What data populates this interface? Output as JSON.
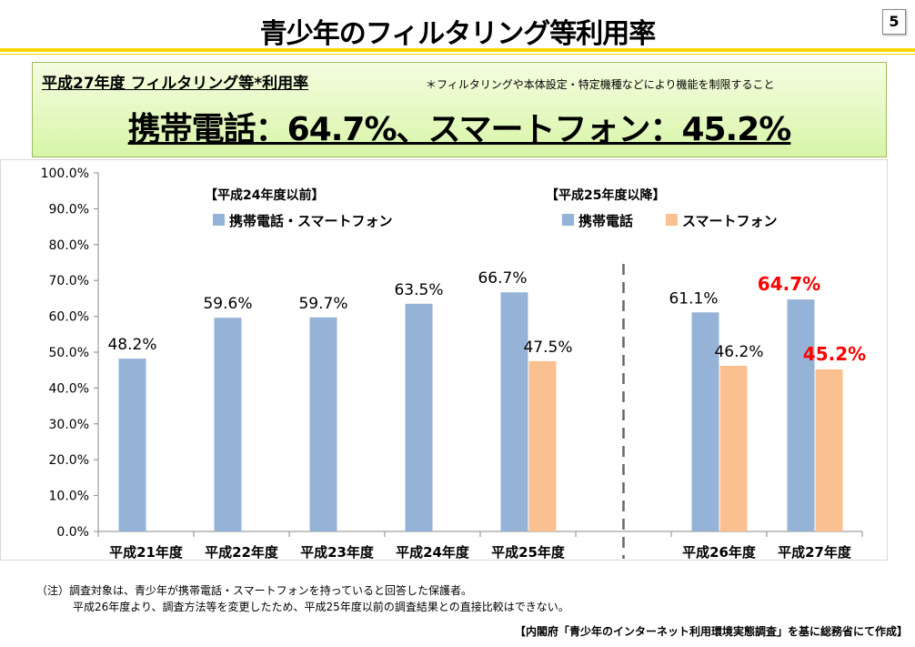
{
  "header": {
    "title": "青少年のフィルタリング等利用率",
    "page_number": "5"
  },
  "summary": {
    "heading": "平成27年度 フィルタリング等*利用率",
    "footnote": "＊フィルタリングや本体設定・特定機種などにより機能を制限すること",
    "headline": "携帯電話：64.7%、スマートフォン：45.2%"
  },
  "chart_data": {
    "type": "bar",
    "categories": [
      "平成21年度",
      "平成22年度",
      "平成23年度",
      "平成24年度",
      "平成25年度",
      "平成26年度",
      "平成27年度"
    ],
    "series": [
      {
        "name": "携帯電話",
        "color": "#95B3D7",
        "values": [
          48.2,
          59.6,
          59.7,
          63.5,
          66.7,
          61.1,
          64.7
        ],
        "labels": [
          "48.2%",
          "59.6%",
          "59.7%",
          "63.5%",
          "66.7%",
          "61.1%",
          "64.7%"
        ]
      },
      {
        "name": "スマートフォン",
        "color": "#FAC090",
        "values": [
          null,
          null,
          null,
          null,
          47.5,
          46.2,
          45.2
        ],
        "labels": [
          "",
          "",
          "",
          "",
          "47.5%",
          "46.2%",
          "45.2%"
        ]
      }
    ],
    "highlight_color": "#FF0000",
    "highlight_category": "平成27年度",
    "ylim": [
      0,
      100
    ],
    "yticks": [
      "0.0%",
      "10.0%",
      "20.0%",
      "30.0%",
      "40.0%",
      "50.0%",
      "60.0%",
      "70.0%",
      "80.0%",
      "90.0%",
      "100.0%"
    ],
    "grid": false,
    "divider_after": "平成25年度",
    "legend": {
      "before": {
        "title": "【平成24年度以前】",
        "items": [
          {
            "label": "携帯電話・スマートフォン",
            "color": "#95B3D7"
          }
        ]
      },
      "after": {
        "title": "【平成25年度以降】",
        "items": [
          {
            "label": "携帯電話",
            "color": "#95B3D7"
          },
          {
            "label": "スマートフォン",
            "color": "#FAC090"
          }
        ]
      }
    }
  },
  "notes": {
    "line1": "（注）調査対象は、青少年が携帯電話・スマートフォンを持っていると回答した保護者。",
    "line2": "平成26年度より、調査方法等を変更したため、平成25年度以前の調査結果との直接比較はできない。",
    "source": "【内閣府「青少年のインターネット利用環境実態調査」を基に総務省にて作成】"
  }
}
